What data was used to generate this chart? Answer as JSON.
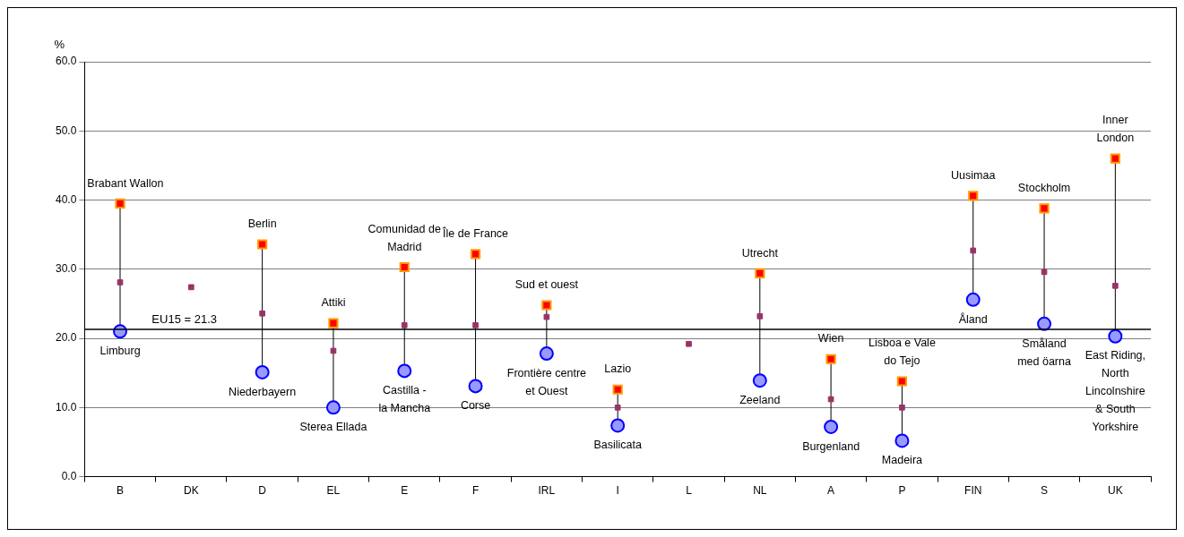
{
  "chart_data": {
    "type": "scatter",
    "ylabel": "%",
    "categories": [
      "B",
      "DK",
      "D",
      "EL",
      "E",
      "F",
      "IRL",
      "I",
      "L",
      "NL",
      "A",
      "P",
      "FIN",
      "S",
      "UK"
    ],
    "series": [
      {
        "color": "#ff0000",
        "marker": "square",
        "values": [
          39.5,
          null,
          33.6,
          22.2,
          30.3,
          32.2,
          24.8,
          12.6,
          null,
          29.4,
          17.0,
          13.8,
          40.6,
          38.8,
          46.0
        ]
      },
      {
        "color": "#993366",
        "marker": "square",
        "values": [
          28.1,
          27.4,
          23.6,
          18.2,
          21.9,
          21.9,
          23.1,
          10.0,
          19.2,
          23.2,
          11.2,
          10.0,
          32.7,
          29.6,
          27.6
        ]
      },
      {
        "color": "#9999ff",
        "marker": "circle",
        "values": [
          21.0,
          null,
          15.1,
          10.0,
          15.3,
          13.1,
          17.8,
          7.4,
          null,
          13.9,
          7.2,
          5.2,
          25.6,
          22.1,
          20.3
        ]
      }
    ],
    "ylim": [
      0,
      60
    ],
    "yticks": [
      {
        "value": 0,
        "label": "0.0"
      },
      {
        "value": 10,
        "label": "10.0"
      },
      {
        "value": 20,
        "label": "20.0"
      },
      {
        "value": 30,
        "label": "30.0"
      },
      {
        "value": 40,
        "label": "40.0"
      },
      {
        "value": 50,
        "label": "50.0"
      },
      {
        "value": 60,
        "label": "60.0"
      }
    ],
    "grid": "y",
    "legend": false,
    "ref_lines": [
      {
        "axis": "y",
        "value": 21.3,
        "label": "EU15 = 21.3",
        "color": "#000000"
      }
    ],
    "annotations": [
      {
        "text": "Brabant Wallon",
        "x": "B",
        "y": 39.5
      },
      {
        "text": "Limburg",
        "x": "B",
        "y": 21.0
      },
      {
        "text": "Berlin",
        "x": "D",
        "y": 33.6
      },
      {
        "text": "Niederbayern",
        "x": "D",
        "y": 15.1
      },
      {
        "text": "Attiki",
        "x": "EL",
        "y": 22.2
      },
      {
        "text": "Sterea Ellada",
        "x": "EL",
        "y": 10.0
      },
      {
        "text": "Comunidad de\nMadrid",
        "x": "E",
        "y": 30.3
      },
      {
        "text": "Castilla -\nla Mancha",
        "x": "E",
        "y": 15.3
      },
      {
        "text": "Île de France",
        "x": "F",
        "y": 32.2
      },
      {
        "text": "Corse",
        "x": "F",
        "y": 13.1
      },
      {
        "text": "Sud et ouest",
        "x": "IRL",
        "y": 24.8
      },
      {
        "text": "Frontière centre\net Ouest",
        "x": "IRL",
        "y": 17.8
      },
      {
        "text": "Lazio",
        "x": "I",
        "y": 12.6
      },
      {
        "text": "Basilicata",
        "x": "I",
        "y": 7.4
      },
      {
        "text": "Utrecht",
        "x": "NL",
        "y": 29.4
      },
      {
        "text": "Zeeland",
        "x": "NL",
        "y": 13.9
      },
      {
        "text": "Wien",
        "x": "A",
        "y": 17.0
      },
      {
        "text": "Burgenland",
        "x": "A",
        "y": 7.2
      },
      {
        "text": "Lisboa e Vale\ndo Tejo",
        "x": "P",
        "y": 13.8
      },
      {
        "text": "Madeira",
        "x": "P",
        "y": 5.2
      },
      {
        "text": "Uusimaa",
        "x": "FIN",
        "y": 40.6
      },
      {
        "text": "Åland",
        "x": "FIN",
        "y": 25.6
      },
      {
        "text": "Stockholm",
        "x": "S",
        "y": 38.8
      },
      {
        "text": "Småland\nmed öarna",
        "x": "S",
        "y": 22.1
      },
      {
        "text": "Inner\nLondon",
        "x": "UK",
        "y": 46.0
      },
      {
        "text": "East Riding,\nNorth\nLincolnshire\n& South\nYorkshire",
        "x": "UK",
        "y": 20.3
      }
    ]
  }
}
